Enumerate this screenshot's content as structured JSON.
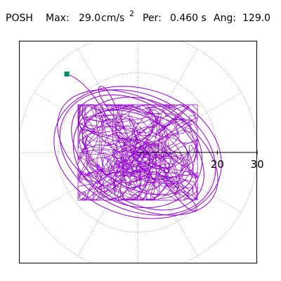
{
  "header": {
    "station": "POSH",
    "max_label": "Max:",
    "max_value": "29.0",
    "max_unit": "cm/s",
    "max_unit_exponent": "2",
    "per_label": "Per:",
    "per_value": "0.460 s",
    "ang_label": "Ang:",
    "ang_value": "129.0"
  },
  "colors": {
    "trace": "#9400d3",
    "marker": "#008b6b",
    "grid": "#999999",
    "axis": "#000000",
    "frame": "#000000"
  },
  "chart_data": {
    "type": "scatter",
    "title": "",
    "xlabel": "",
    "ylabel": "",
    "coordinate_system": "polar",
    "units": "cm/s2",
    "radial_tick_labels": [
      "20",
      "30"
    ],
    "radial_ticks": [
      20,
      30
    ],
    "grid_rings": [
      10,
      20,
      30
    ],
    "grid_spokes_deg": [
      0,
      30,
      60,
      90,
      120,
      150,
      180,
      210,
      240,
      270,
      300,
      330
    ],
    "grid": true,
    "max_amplitude": 29.0,
    "period_s": 0.46,
    "direction_deg": 129.0,
    "start_marker": {
      "x": -17.8,
      "y": 19.7
    },
    "series": [
      {
        "orbit_ellipses": [
          {
            "a": 20.5,
            "b": 14.5,
            "tilt_deg": 25
          },
          {
            "a": 21.5,
            "b": 16.0,
            "tilt_deg": 18
          },
          {
            "a": 18.5,
            "b": 12.0,
            "tilt_deg": 35
          },
          {
            "a": 16.5,
            "b": 13.5,
            "tilt_deg": 20
          },
          {
            "a": 15.0,
            "b": 9.0,
            "tilt_deg": 28
          },
          {
            "a": 22.0,
            "b": 13.0,
            "tilt_deg": 30
          }
        ],
        "lobes": [
          {
            "x": 14.5,
            "y": -14.5
          },
          {
            "x": -9.5,
            "y": 16.5
          },
          {
            "x": 12.5,
            "y": 11.5
          }
        ]
      }
    ]
  }
}
